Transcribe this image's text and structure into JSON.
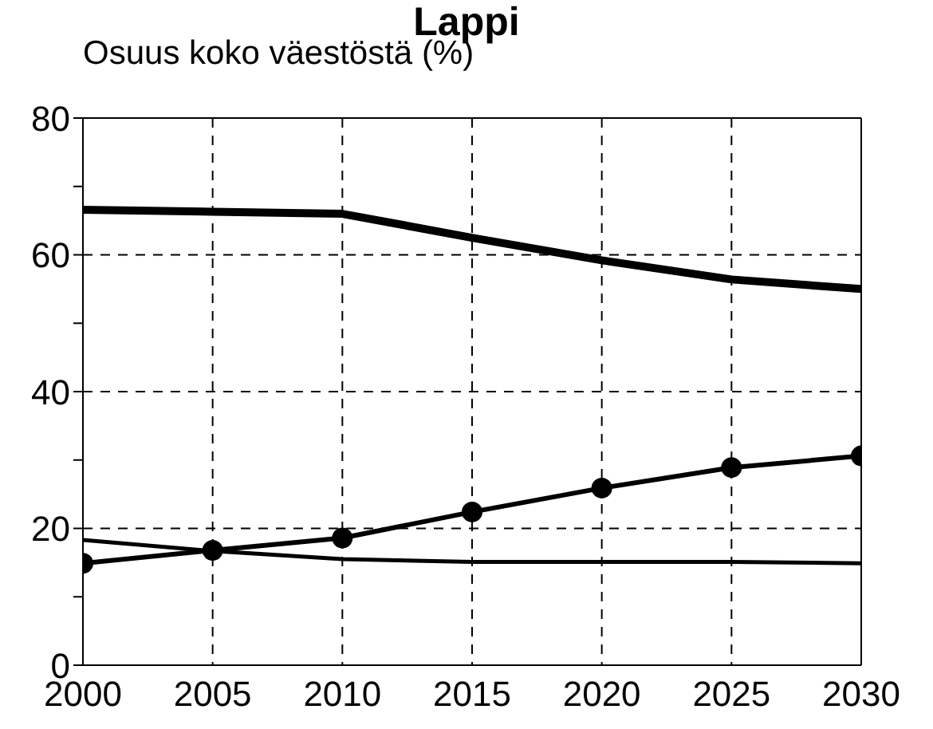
{
  "chart_data": {
    "type": "line",
    "title": "Lappi",
    "ylabel": "Osuus koko väestöstä (%)",
    "x": [
      2000,
      2005,
      2010,
      2015,
      2020,
      2025,
      2030
    ],
    "series": [
      {
        "color": "#000000",
        "marker": "none",
        "values": [
          66.6,
          66.3,
          66.0,
          62.5,
          59.2,
          56.4,
          55.0
        ]
      },
      {
        "color": "#000000",
        "marker": "circle",
        "values": [
          14.9,
          16.8,
          18.6,
          22.4,
          25.9,
          28.9,
          30.6
        ]
      },
      {
        "color": "#000000",
        "marker": "none",
        "values": [
          18.3,
          16.7,
          15.5,
          15.1,
          15.1,
          15.1,
          14.9
        ]
      }
    ],
    "xlim": [
      2000,
      2030
    ],
    "xticks": [
      2000,
      2005,
      2010,
      2015,
      2020,
      2025,
      2030
    ],
    "ylim": [
      0,
      80
    ],
    "yticks": [
      0,
      {
        "value": 10,
        "label": null
      },
      20,
      {
        "value": 30,
        "label": null
      },
      40,
      {
        "value": 50,
        "label": null
      },
      60,
      {
        "value": 70,
        "label": null
      },
      80
    ],
    "grid": true,
    "line_style": "solid"
  }
}
